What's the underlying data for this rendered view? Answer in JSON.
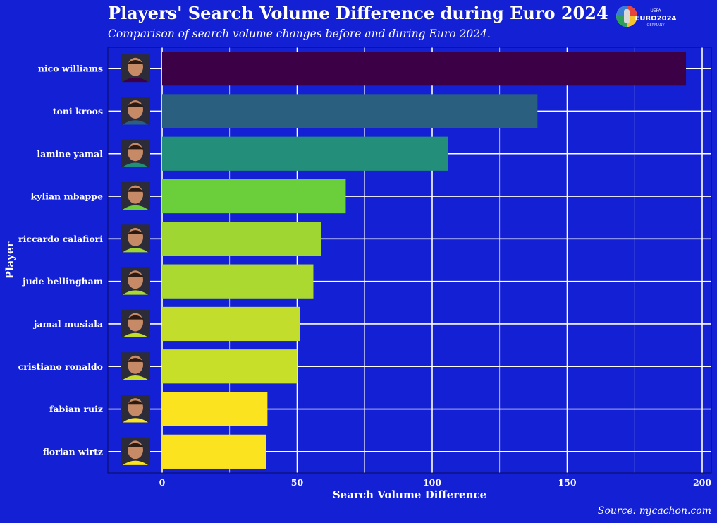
{
  "page": {
    "title": "Players' Search Volume Difference during Euro 2024",
    "subtitle": "Comparison of search volume changes before and during Euro 2024.",
    "source": "Source: mjcachon.com",
    "logo_text": "EURO2024",
    "logo_subtext": "GERMANY"
  },
  "colors": {
    "background": "#1320d3",
    "grid": "#ffffff",
    "text": "#ffffff"
  },
  "chart_data": {
    "type": "bar",
    "orientation": "horizontal",
    "title": "Players' Search Volume Difference during Euro 2024",
    "subtitle": "Comparison of search volume changes before and during Euro 2024.",
    "xlabel": "Search Volume Difference",
    "ylabel": "Player",
    "xlim": [
      -20,
      204
    ],
    "xticks": [
      0,
      50,
      100,
      150,
      200
    ],
    "grid": true,
    "legend": "none",
    "categories": [
      "nico williams",
      "toni kroos",
      "lamine yamal",
      "kylian mbappe",
      "riccardo calafiori",
      "jude bellingham",
      "jamal musiala",
      "cristiano ronaldo",
      "fabian ruiz",
      "florian wirtz"
    ],
    "values": [
      194,
      139,
      106,
      68,
      59,
      56,
      51,
      50,
      39,
      38.5
    ],
    "bar_colors": [
      "#3b0045",
      "#2a5f7f",
      "#238e7a",
      "#6bcf3c",
      "#9fd632",
      "#acd930",
      "#c2dd2b",
      "#c8df2a",
      "#fbe31f",
      "#fbe31f"
    ],
    "player_images": [
      "player-photo",
      "player-photo",
      "player-photo",
      "player-photo",
      "player-photo",
      "player-photo",
      "player-photo",
      "player-photo",
      "player-photo",
      "player-photo"
    ]
  }
}
